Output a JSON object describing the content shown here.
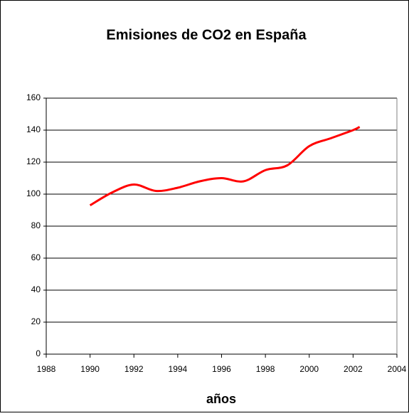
{
  "chart_data": {
    "type": "line",
    "title": "Emisiones de CO2 en España",
    "xlabel": "años",
    "x": [
      1990,
      1991,
      1992,
      1993,
      1994,
      1995,
      1996,
      1997,
      1998,
      1999,
      2000,
      2001,
      2002,
      2002.3
    ],
    "series": [
      {
        "name": "CO2",
        "color": "#ff0000",
        "values": [
          93,
          101,
          106,
          102,
          104,
          108,
          110,
          108,
          115,
          118,
          130,
          135,
          140,
          142
        ]
      }
    ],
    "xlim": [
      1988,
      2004
    ],
    "xticks": [
      1988,
      1990,
      1992,
      1994,
      1996,
      1998,
      2000,
      2002,
      2004
    ],
    "ylim": [
      0,
      160
    ],
    "yticks": [
      0,
      20,
      40,
      60,
      80,
      100,
      120,
      140,
      160
    ],
    "grid": true,
    "legend": false
  }
}
